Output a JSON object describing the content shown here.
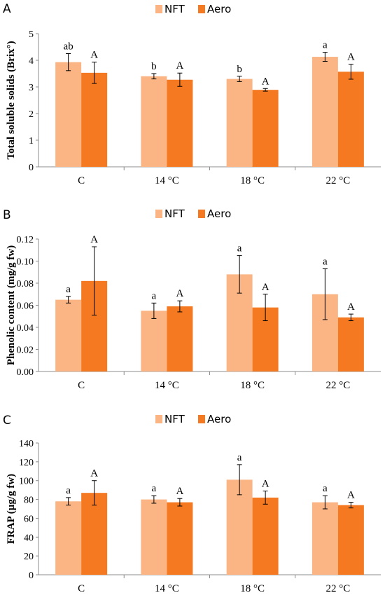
{
  "legend": [
    "NFT",
    "Aero"
  ],
  "colors": {
    "NFT": "#fbb584",
    "Aero": "#f47920"
  },
  "chart_data": [
    {
      "type": "bar",
      "panel_label": "A",
      "ylabel": "Total soluble solids (Brix°)",
      "categories": [
        "C",
        "14 °C",
        "18 °C",
        "22 °C"
      ],
      "ylim": [
        0,
        5
      ],
      "yticks": [
        "0",
        "1",
        "2",
        "3",
        "4",
        "5"
      ],
      "ytick_values": [
        0,
        1,
        2,
        3,
        4,
        5
      ],
      "series": [
        {
          "name": "NFT",
          "values": [
            3.93,
            3.4,
            3.3,
            4.13
          ],
          "errors": [
            0.32,
            0.1,
            0.1,
            0.17
          ],
          "labels": [
            "ab",
            "b",
            "b",
            "a"
          ]
        },
        {
          "name": "Aero",
          "values": [
            3.53,
            3.27,
            2.89,
            3.57
          ],
          "errors": [
            0.4,
            0.25,
            0.05,
            0.28
          ],
          "labels": [
            "A",
            "A",
            "A",
            "A"
          ]
        }
      ]
    },
    {
      "type": "bar",
      "panel_label": "B",
      "ylabel": "Phenolic content (mg/g fw)",
      "categories": [
        "C",
        "14 °C",
        "18 °C",
        "22 °C"
      ],
      "ylim": [
        0,
        0.12
      ],
      "yticks": [
        "0.00",
        "0.02",
        "0.04",
        "0.06",
        "0.08",
        "0.10",
        "0.12"
      ],
      "ytick_values": [
        0,
        0.02,
        0.04,
        0.06,
        0.08,
        0.1,
        0.12
      ],
      "series": [
        {
          "name": "NFT",
          "values": [
            0.065,
            0.055,
            0.088,
            0.07
          ],
          "errors": [
            0.003,
            0.007,
            0.017,
            0.023
          ],
          "labels": [
            "a",
            "a",
            "a",
            "a"
          ]
        },
        {
          "name": "Aero",
          "values": [
            0.082,
            0.059,
            0.058,
            0.049
          ],
          "errors": [
            0.031,
            0.005,
            0.012,
            0.003
          ],
          "labels": [
            "A",
            "A",
            "A",
            "A"
          ]
        }
      ]
    },
    {
      "type": "bar",
      "panel_label": "C",
      "ylabel": "FRAP (µg/g fw)",
      "categories": [
        "C",
        "14 °C",
        "18 °C",
        "22 °C"
      ],
      "ylim": [
        0,
        140
      ],
      "yticks": [
        "0",
        "20",
        "40",
        "60",
        "80",
        "100",
        "120",
        "140"
      ],
      "ytick_values": [
        0,
        20,
        40,
        60,
        80,
        100,
        120,
        140
      ],
      "series": [
        {
          "name": "NFT",
          "values": [
            78,
            80,
            101,
            77
          ],
          "errors": [
            4,
            4,
            16,
            7
          ],
          "labels": [
            "a",
            "a",
            "a",
            "a"
          ]
        },
        {
          "name": "Aero",
          "values": [
            87,
            77,
            82,
            74
          ],
          "errors": [
            13,
            4,
            7,
            3
          ],
          "labels": [
            "A",
            "A",
            "A",
            "A"
          ]
        }
      ]
    }
  ]
}
